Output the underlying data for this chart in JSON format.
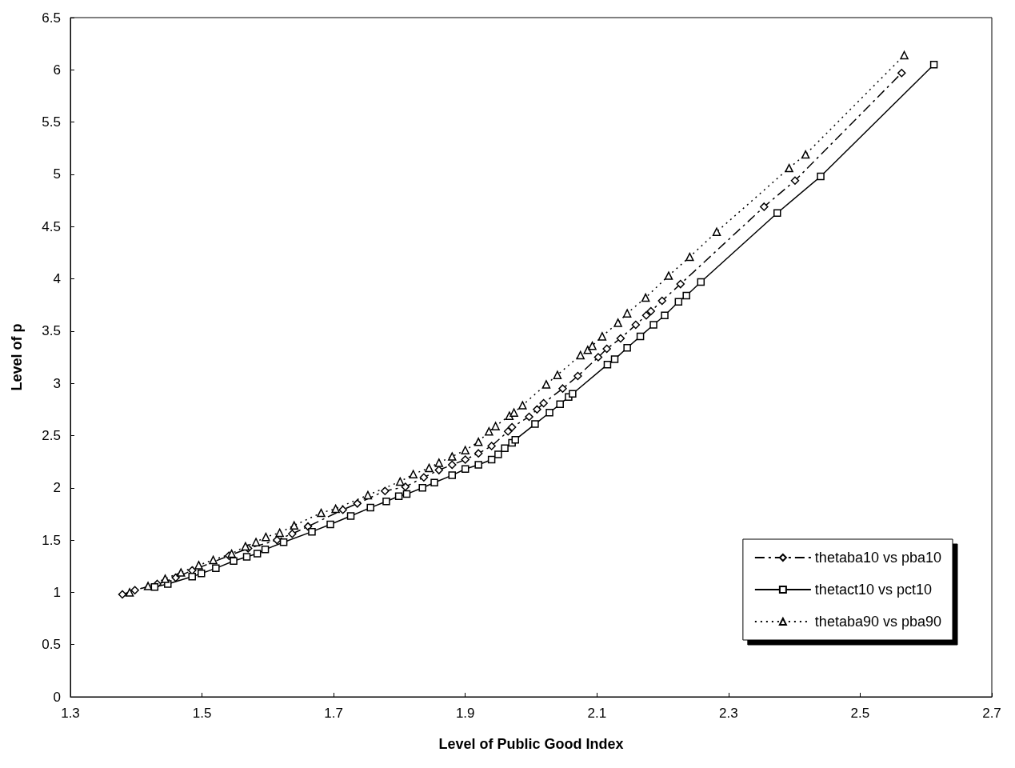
{
  "chart_data": {
    "type": "line",
    "xlabel": "Level of Public Good Index",
    "ylabel": "Level of p",
    "xlim": [
      1.3,
      2.7
    ],
    "xticks": [
      1.3,
      1.5,
      1.7,
      1.9,
      2.1,
      2.3,
      2.5,
      2.7
    ],
    "ylim": [
      0,
      6.5
    ],
    "yticks": [
      0,
      0.5,
      1,
      1.5,
      2,
      2.5,
      3,
      3.5,
      4,
      4.5,
      5,
      5.5,
      6,
      6.5
    ],
    "legend": "bottom right",
    "series": [
      {
        "name": "thetaba10 vs pba10",
        "color": "#000000",
        "marker": "diamond",
        "line_style": "dashed",
        "x": [
          1.379,
          1.398,
          1.432,
          1.46,
          1.485,
          1.541,
          1.57,
          1.614,
          1.637,
          1.661,
          1.714,
          1.736,
          1.778,
          1.809,
          1.837,
          1.86,
          1.88,
          1.9,
          1.92,
          1.94,
          1.965,
          1.971,
          1.997,
          2.009,
          2.019,
          2.048,
          2.071,
          2.102,
          2.115,
          2.136,
          2.159,
          2.175,
          2.182,
          2.199,
          2.227,
          2.354,
          2.401,
          2.563
        ],
        "values": [
          0.98,
          1.02,
          1.08,
          1.14,
          1.21,
          1.35,
          1.42,
          1.5,
          1.56,
          1.63,
          1.79,
          1.85,
          1.97,
          2.01,
          2.1,
          2.17,
          2.22,
          2.27,
          2.33,
          2.4,
          2.54,
          2.58,
          2.68,
          2.75,
          2.81,
          2.95,
          3.07,
          3.25,
          3.33,
          3.43,
          3.56,
          3.65,
          3.69,
          3.79,
          3.95,
          4.69,
          4.94,
          5.97
        ]
      },
      {
        "name": "thetact10 vs pct10",
        "color": "#000000",
        "marker": "square",
        "line_style": "solid",
        "x": [
          1.428,
          1.448,
          1.485,
          1.499,
          1.521,
          1.548,
          1.568,
          1.584,
          1.596,
          1.624,
          1.667,
          1.695,
          1.726,
          1.756,
          1.78,
          1.799,
          1.811,
          1.835,
          1.853,
          1.88,
          1.9,
          1.92,
          1.94,
          1.95,
          1.96,
          1.971,
          1.976,
          2.006,
          2.028,
          2.044,
          2.057,
          2.063,
          2.116,
          2.127,
          2.146,
          2.166,
          2.186,
          2.203,
          2.224,
          2.236,
          2.258,
          2.374,
          2.44,
          2.612
        ],
        "values": [
          1.05,
          1.08,
          1.15,
          1.18,
          1.23,
          1.3,
          1.34,
          1.37,
          1.41,
          1.48,
          1.58,
          1.65,
          1.73,
          1.81,
          1.87,
          1.92,
          1.94,
          2.0,
          2.05,
          2.12,
          2.18,
          2.22,
          2.27,
          2.32,
          2.38,
          2.43,
          2.46,
          2.61,
          2.72,
          2.8,
          2.87,
          2.9,
          3.18,
          3.23,
          3.34,
          3.45,
          3.56,
          3.65,
          3.78,
          3.84,
          3.97,
          4.63,
          4.98,
          6.05
        ]
      },
      {
        "name": "thetaba90 vs pba90",
        "color": "#000000",
        "marker": "triangle",
        "line_style": "dotted",
        "x": [
          1.39,
          1.418,
          1.444,
          1.468,
          1.495,
          1.517,
          1.545,
          1.566,
          1.582,
          1.597,
          1.618,
          1.64,
          1.681,
          1.703,
          1.752,
          1.801,
          1.821,
          1.845,
          1.86,
          1.88,
          1.9,
          1.92,
          1.936,
          1.946,
          1.967,
          1.974,
          1.987,
          2.023,
          2.04,
          2.075,
          2.086,
          2.093,
          2.108,
          2.132,
          2.146,
          2.174,
          2.209,
          2.241,
          2.282,
          2.392,
          2.417,
          2.567
        ],
        "values": [
          1.0,
          1.06,
          1.13,
          1.19,
          1.26,
          1.31,
          1.37,
          1.44,
          1.48,
          1.53,
          1.57,
          1.64,
          1.76,
          1.8,
          1.93,
          2.06,
          2.13,
          2.19,
          2.24,
          2.3,
          2.36,
          2.44,
          2.54,
          2.59,
          2.69,
          2.72,
          2.79,
          2.99,
          3.08,
          3.27,
          3.32,
          3.36,
          3.45,
          3.58,
          3.67,
          3.82,
          4.03,
          4.21,
          4.45,
          5.06,
          5.19,
          6.14
        ]
      }
    ]
  }
}
